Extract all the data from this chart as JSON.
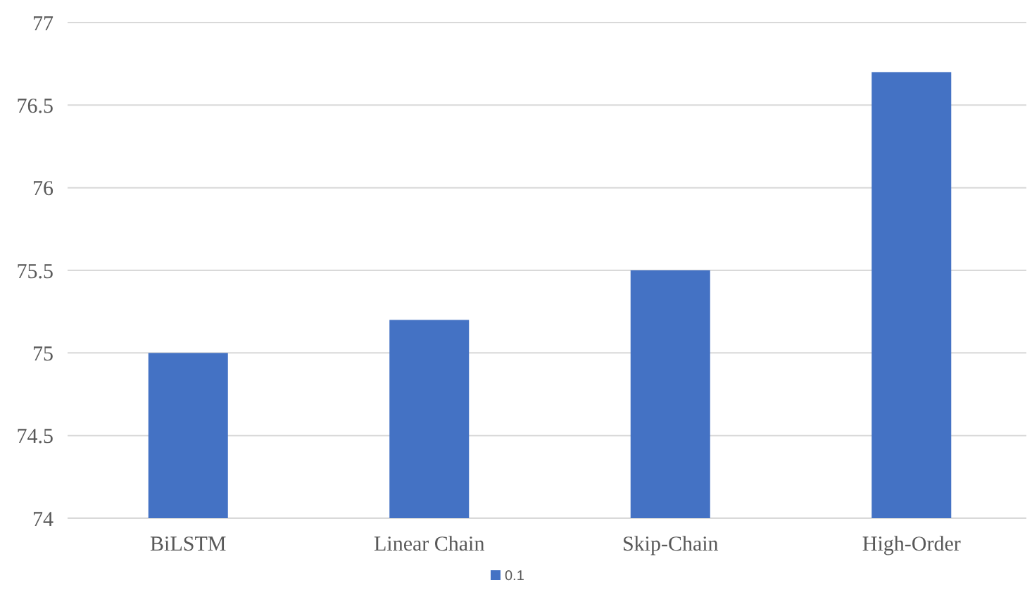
{
  "chart_data": {
    "type": "bar",
    "categories": [
      "BiLSTM",
      "Linear Chain",
      "Skip-Chain",
      "High-Order"
    ],
    "series": [
      {
        "name": "0.1",
        "color": "#4472c4",
        "values": [
          75,
          75.2,
          75.5,
          76.7
        ]
      }
    ],
    "ylim": [
      74,
      77
    ],
    "yticks": [
      74,
      74.5,
      75,
      75.5,
      76,
      76.5,
      77
    ],
    "grid": "y",
    "legend": "bottom"
  }
}
